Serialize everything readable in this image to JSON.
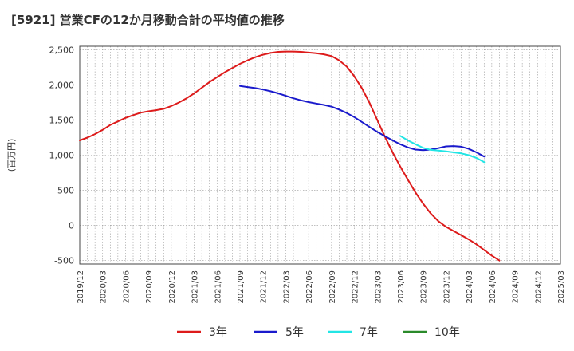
{
  "chart_data": {
    "type": "line",
    "title": "[5921]  営業CFの12か月移動合計の平均値の推移",
    "ylabel": "(百万円)",
    "xlabel": "",
    "ylim": [
      -550,
      2550
    ],
    "yticks": [
      -500,
      0,
      500,
      1000,
      1500,
      2000,
      2500
    ],
    "ytick_labels": [
      "-500",
      "0",
      "500",
      "1,000",
      "1,500",
      "2,000",
      "2,500"
    ],
    "xlim": [
      "2019-12",
      "2025-03"
    ],
    "xtick_labels": [
      "2019/12",
      "2020/03",
      "2020/06",
      "2020/09",
      "2020/12",
      "2021/03",
      "2021/06",
      "2021/09",
      "2021/12",
      "2022/03",
      "2022/06",
      "2022/09",
      "2022/12",
      "2023/03",
      "2023/06",
      "2023/09",
      "2023/12",
      "2024/03",
      "2024/06",
      "2024/09",
      "2024/12",
      "2025/03"
    ],
    "grid": true,
    "legend_position": "bottom",
    "series": [
      {
        "name": "3年",
        "color": "#dd1b1b",
        "points": [
          [
            "2019-12",
            1210
          ],
          [
            "2020-01",
            1250
          ],
          [
            "2020-02",
            1300
          ],
          [
            "2020-03",
            1360
          ],
          [
            "2020-04",
            1430
          ],
          [
            "2020-05",
            1480
          ],
          [
            "2020-06",
            1530
          ],
          [
            "2020-07",
            1570
          ],
          [
            "2020-08",
            1605
          ],
          [
            "2020-09",
            1625
          ],
          [
            "2020-10",
            1640
          ],
          [
            "2020-11",
            1660
          ],
          [
            "2020-12",
            1700
          ],
          [
            "2021-01",
            1750
          ],
          [
            "2021-02",
            1810
          ],
          [
            "2021-03",
            1880
          ],
          [
            "2021-04",
            1960
          ],
          [
            "2021-05",
            2040
          ],
          [
            "2021-06",
            2110
          ],
          [
            "2021-07",
            2180
          ],
          [
            "2021-08",
            2240
          ],
          [
            "2021-09",
            2300
          ],
          [
            "2021-10",
            2350
          ],
          [
            "2021-11",
            2395
          ],
          [
            "2021-12",
            2430
          ],
          [
            "2022-01",
            2455
          ],
          [
            "2022-02",
            2470
          ],
          [
            "2022-03",
            2475
          ],
          [
            "2022-04",
            2475
          ],
          [
            "2022-05",
            2470
          ],
          [
            "2022-06",
            2460
          ],
          [
            "2022-07",
            2450
          ],
          [
            "2022-08",
            2435
          ],
          [
            "2022-09",
            2410
          ],
          [
            "2022-10",
            2350
          ],
          [
            "2022-11",
            2260
          ],
          [
            "2022-12",
            2120
          ],
          [
            "2023-01",
            1950
          ],
          [
            "2023-02",
            1740
          ],
          [
            "2023-03",
            1500
          ],
          [
            "2023-04",
            1260
          ],
          [
            "2023-05",
            1040
          ],
          [
            "2023-06",
            840
          ],
          [
            "2023-07",
            650
          ],
          [
            "2023-08",
            470
          ],
          [
            "2023-09",
            310
          ],
          [
            "2023-10",
            170
          ],
          [
            "2023-11",
            60
          ],
          [
            "2023-12",
            -20
          ],
          [
            "2024-01",
            -80
          ],
          [
            "2024-02",
            -140
          ],
          [
            "2024-03",
            -200
          ],
          [
            "2024-04",
            -270
          ],
          [
            "2024-05",
            -350
          ],
          [
            "2024-06",
            -430
          ],
          [
            "2024-07",
            -500
          ]
        ]
      },
      {
        "name": "5年",
        "color": "#1a1acc",
        "points": [
          [
            "2021-09",
            1985
          ],
          [
            "2021-10",
            1970
          ],
          [
            "2021-11",
            1955
          ],
          [
            "2021-12",
            1935
          ],
          [
            "2022-01",
            1910
          ],
          [
            "2022-02",
            1880
          ],
          [
            "2022-03",
            1845
          ],
          [
            "2022-04",
            1810
          ],
          [
            "2022-05",
            1780
          ],
          [
            "2022-06",
            1755
          ],
          [
            "2022-07",
            1735
          ],
          [
            "2022-08",
            1715
          ],
          [
            "2022-09",
            1690
          ],
          [
            "2022-10",
            1650
          ],
          [
            "2022-11",
            1600
          ],
          [
            "2022-12",
            1540
          ],
          [
            "2023-01",
            1470
          ],
          [
            "2023-02",
            1400
          ],
          [
            "2023-03",
            1330
          ],
          [
            "2023-04",
            1270
          ],
          [
            "2023-05",
            1210
          ],
          [
            "2023-06",
            1155
          ],
          [
            "2023-07",
            1110
          ],
          [
            "2023-08",
            1080
          ],
          [
            "2023-09",
            1070
          ],
          [
            "2023-10",
            1080
          ],
          [
            "2023-11",
            1100
          ],
          [
            "2023-12",
            1125
          ],
          [
            "2024-01",
            1130
          ],
          [
            "2024-02",
            1120
          ],
          [
            "2024-03",
            1090
          ],
          [
            "2024-04",
            1040
          ],
          [
            "2024-05",
            980
          ]
        ]
      },
      {
        "name": "7年",
        "color": "#22e5e5",
        "points": [
          [
            "2023-06",
            1275
          ],
          [
            "2023-07",
            1210
          ],
          [
            "2023-08",
            1155
          ],
          [
            "2023-09",
            1105
          ],
          [
            "2023-10",
            1075
          ],
          [
            "2023-11",
            1065
          ],
          [
            "2023-12",
            1055
          ],
          [
            "2024-01",
            1040
          ],
          [
            "2024-02",
            1025
          ],
          [
            "2024-03",
            1000
          ],
          [
            "2024-04",
            960
          ],
          [
            "2024-05",
            900
          ]
        ]
      },
      {
        "name": "10年",
        "color": "#2a8a2a",
        "points": []
      }
    ]
  }
}
